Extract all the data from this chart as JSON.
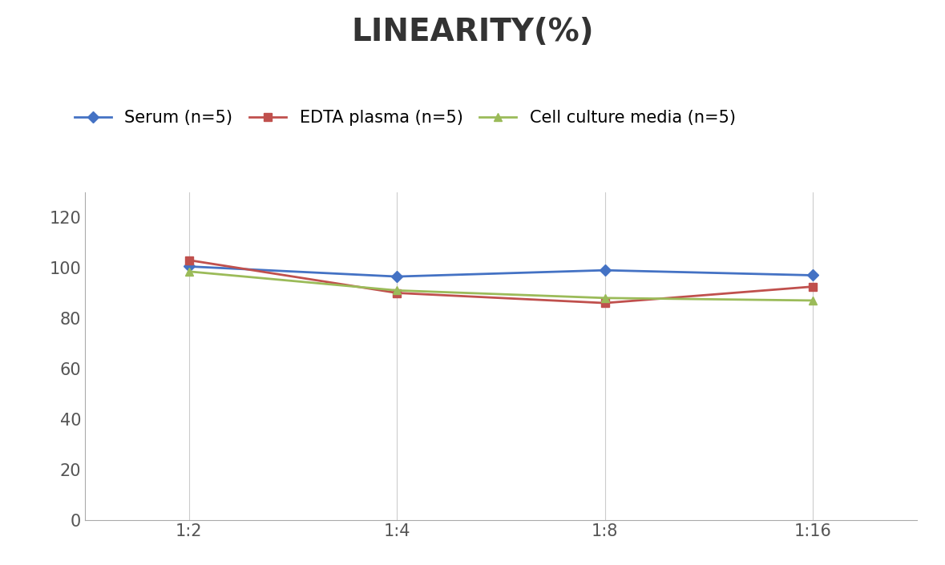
{
  "title": "LINEARITY(%)",
  "title_fontsize": 28,
  "title_fontweight": "bold",
  "x_labels": [
    "1:2",
    "1:4",
    "1:8",
    "1:16"
  ],
  "x_positions": [
    0,
    1,
    2,
    3
  ],
  "series": [
    {
      "label": "Serum (n=5)",
      "values": [
        100.5,
        96.5,
        99.0,
        97.0
      ],
      "color": "#4472C4",
      "marker": "D",
      "markersize": 7,
      "linewidth": 2.0
    },
    {
      "label": "EDTA plasma (n=5)",
      "values": [
        103.0,
        90.0,
        86.0,
        92.5
      ],
      "color": "#C0504D",
      "marker": "s",
      "markersize": 7,
      "linewidth": 2.0
    },
    {
      "label": "Cell culture media (n=5)",
      "values": [
        98.5,
        91.0,
        88.0,
        87.0
      ],
      "color": "#9BBB59",
      "marker": "^",
      "markersize": 7,
      "linewidth": 2.0
    }
  ],
  "ylim": [
    0,
    130
  ],
  "yticks": [
    0,
    20,
    40,
    60,
    80,
    100,
    120
  ],
  "grid_color": "#CCCCCC",
  "grid_linewidth": 0.8,
  "background_color": "#FFFFFF",
  "legend_fontsize": 15,
  "tick_fontsize": 15,
  "spine_color": "#AAAAAA"
}
